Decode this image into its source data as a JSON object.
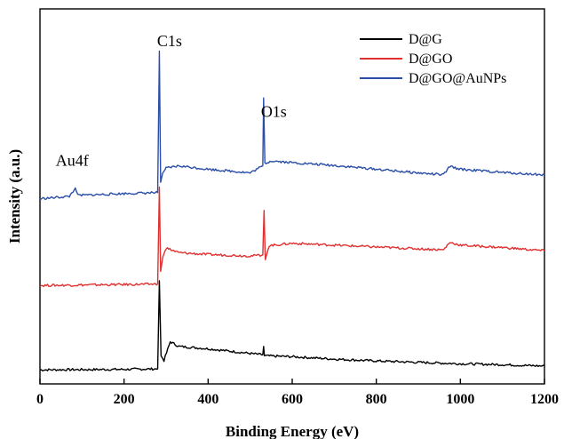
{
  "chart_data": {
    "type": "line",
    "title": "",
    "xlabel": "Binding  Energy (eV)",
    "ylabel": "Intensity (a.u.)",
    "xlim": [
      0,
      1200
    ],
    "xticks": [
      0,
      200,
      400,
      600,
      800,
      1000,
      1200
    ],
    "yticks_shown": false,
    "grid": false,
    "legend_position": "top-right",
    "annotations": [
      {
        "text": "C1s",
        "x": 285
      },
      {
        "text": "O1s",
        "x": 532
      },
      {
        "text": "Au4f",
        "x": 84
      }
    ],
    "series": [
      {
        "name": "D@G",
        "color": "#000000",
        "points": [
          [
            0,
            3.0
          ],
          [
            200,
            3.1
          ],
          [
            280,
            3.2
          ],
          [
            284,
            22
          ],
          [
            288,
            6
          ],
          [
            295,
            5
          ],
          [
            310,
            9
          ],
          [
            330,
            8
          ],
          [
            400,
            7.5
          ],
          [
            500,
            6.5
          ],
          [
            530,
            6.2
          ],
          [
            532,
            8
          ],
          [
            534,
            6
          ],
          [
            600,
            5.8
          ],
          [
            700,
            5.3
          ],
          [
            800,
            4.9
          ],
          [
            900,
            4.6
          ],
          [
            1000,
            4.3
          ],
          [
            1100,
            4.1
          ],
          [
            1200,
            3.8
          ]
        ]
      },
      {
        "name": "D@GO",
        "color": "#e03030",
        "points": [
          [
            0,
            21.0
          ],
          [
            200,
            21.2
          ],
          [
            280,
            21.3
          ],
          [
            284,
            42
          ],
          [
            287,
            24
          ],
          [
            292,
            27
          ],
          [
            300,
            29
          ],
          [
            330,
            28
          ],
          [
            400,
            27.6
          ],
          [
            500,
            27.3
          ],
          [
            530,
            27.5
          ],
          [
            533,
            37
          ],
          [
            536,
            26.5
          ],
          [
            545,
            29.5
          ],
          [
            600,
            30.0
          ],
          [
            700,
            29.6
          ],
          [
            800,
            29.2
          ],
          [
            960,
            28.6
          ],
          [
            975,
            30.2
          ],
          [
            1000,
            29.6
          ],
          [
            1100,
            29.1
          ],
          [
            1200,
            28.4
          ]
        ]
      },
      {
        "name": "D@GO@AuNPs",
        "color": "#2a4ea8",
        "points": [
          [
            0,
            39.5
          ],
          [
            70,
            40.0
          ],
          [
            84,
            41.8
          ],
          [
            90,
            40.2
          ],
          [
            200,
            40.6
          ],
          [
            280,
            40.8
          ],
          [
            284,
            71
          ],
          [
            287,
            43
          ],
          [
            292,
            45
          ],
          [
            300,
            46
          ],
          [
            330,
            46.5
          ],
          [
            400,
            45.8
          ],
          [
            480,
            45.2
          ],
          [
            500,
            45.0
          ],
          [
            530,
            46.5
          ],
          [
            532,
            61
          ],
          [
            535,
            47
          ],
          [
            550,
            47.6
          ],
          [
            600,
            47.2
          ],
          [
            700,
            46.6
          ],
          [
            800,
            45.8
          ],
          [
            900,
            45.0
          ],
          [
            960,
            44.6
          ],
          [
            975,
            46.4
          ],
          [
            1000,
            45.8
          ],
          [
            1100,
            45.1
          ],
          [
            1200,
            44.6
          ]
        ]
      }
    ]
  }
}
